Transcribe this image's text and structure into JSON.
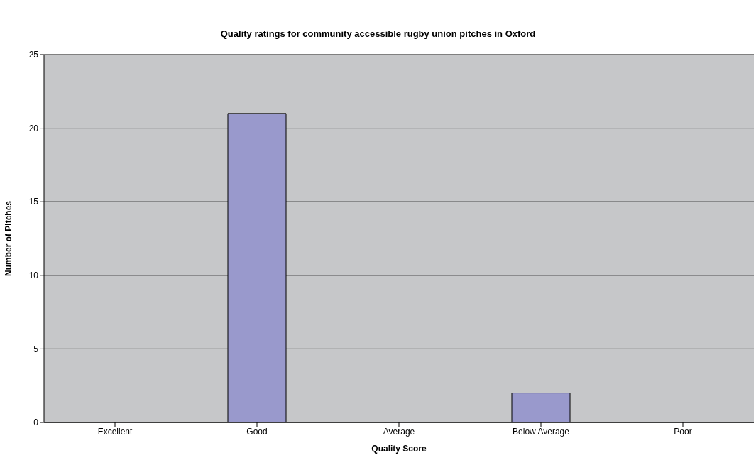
{
  "chart_data": {
    "type": "bar",
    "title": "Quality ratings for community accessible rugby union pitches in Oxford",
    "xlabel": "Quality Score",
    "ylabel": "Number of Pitches",
    "categories": [
      "Excellent",
      "Good",
      "Average",
      "Below Average",
      "Poor"
    ],
    "values": [
      0,
      21,
      0,
      2,
      0
    ],
    "color": "#9999cc",
    "ylim": [
      0,
      25
    ],
    "yticks": [
      0,
      5,
      10,
      15,
      20,
      25
    ],
    "grid": "y",
    "legend": false
  }
}
